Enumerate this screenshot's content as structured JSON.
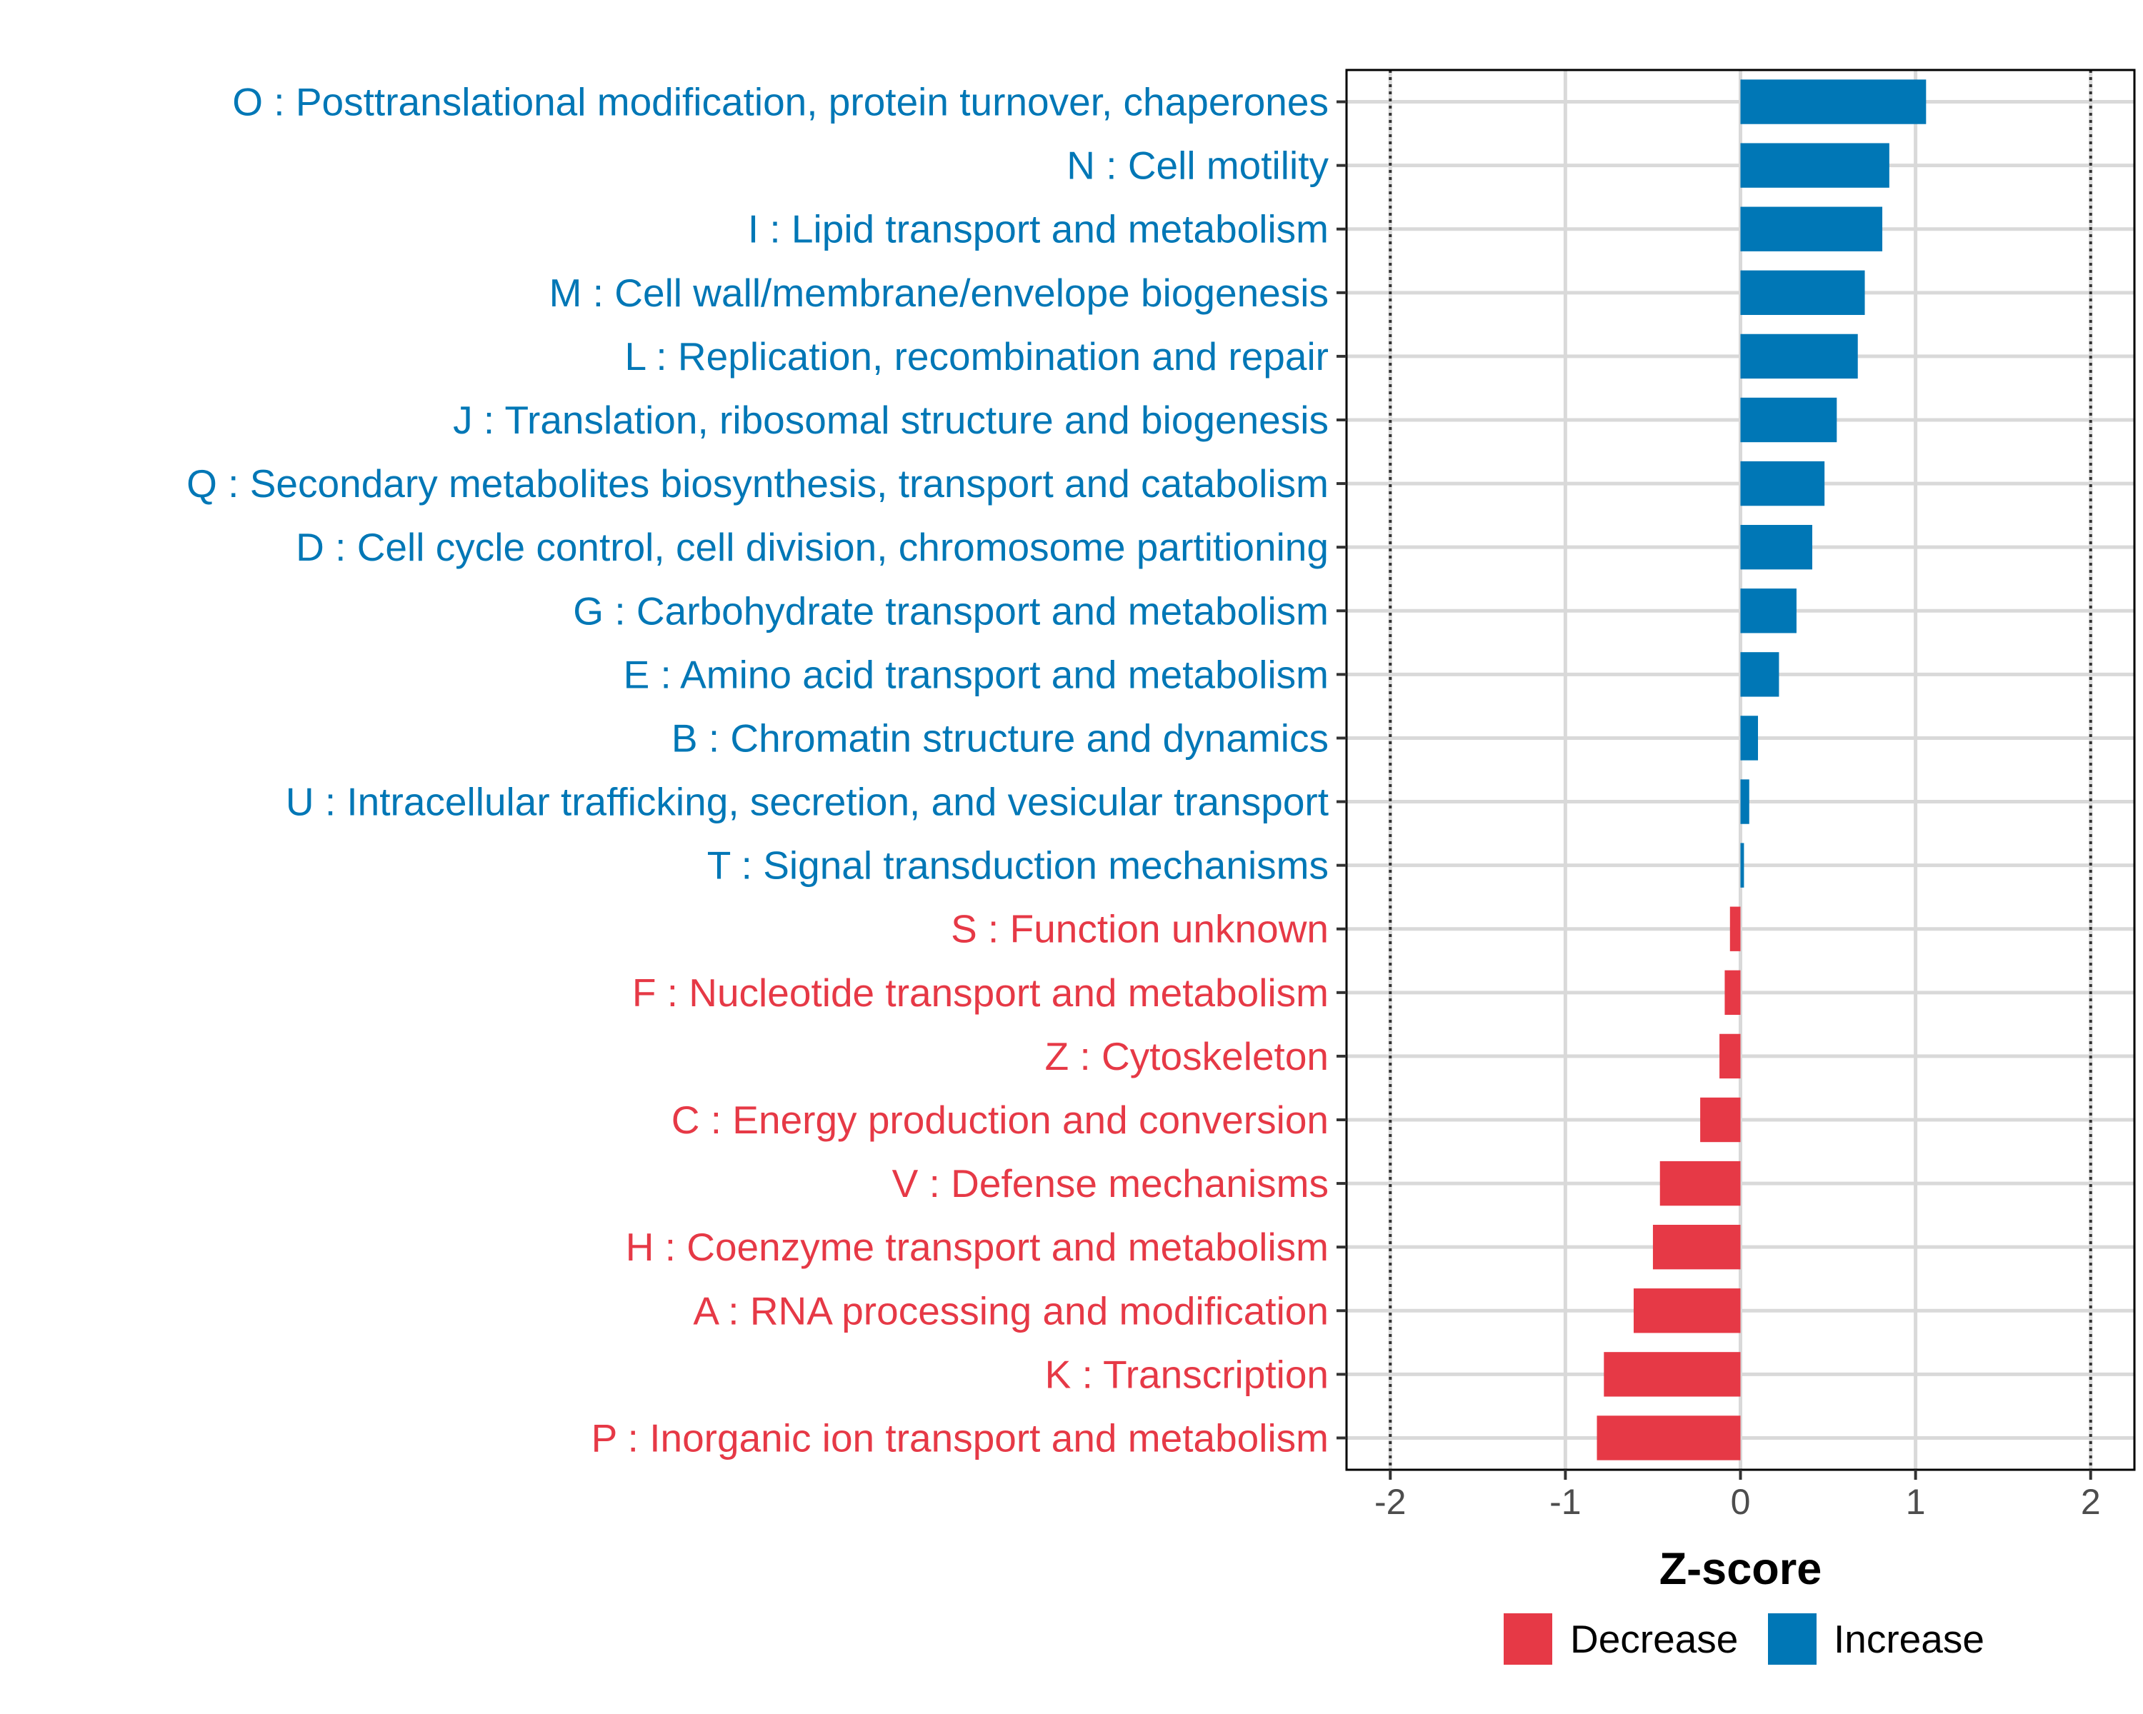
{
  "chart_data": {
    "type": "bar",
    "orientation": "horizontal",
    "title": "",
    "xlabel": "Z-score",
    "ylabel": "",
    "xlim": [
      -2.25,
      2.25
    ],
    "xticks": [
      -2,
      -1,
      0,
      1,
      2
    ],
    "xtick_labels": [
      "-2",
      "-1",
      "0",
      "1",
      "2"
    ],
    "reference_lines": [
      -2,
      2
    ],
    "grid": true,
    "legend_position": "bottom",
    "legend": [
      {
        "label": "Decrease",
        "color": "#e63946"
      },
      {
        "label": "Increase",
        "color": "#0077b6"
      }
    ],
    "categories": [
      "O : Posttranslational modification, protein turnover, chaperones",
      "N : Cell motility",
      "I : Lipid transport and metabolism",
      "M : Cell wall/membrane/envelope biogenesis",
      "L : Replication, recombination and repair",
      "J : Translation, ribosomal structure and biogenesis",
      "Q : Secondary metabolites biosynthesis, transport and catabolism",
      "D : Cell cycle control, cell division, chromosome partitioning",
      "G : Carbohydrate transport and metabolism",
      "E : Amino acid transport and metabolism",
      "B : Chromatin structure and dynamics",
      "U : Intracellular trafficking, secretion, and vesicular transport",
      "T : Signal transduction mechanisms",
      "S : Function unknown",
      "F : Nucleotide transport and metabolism",
      "Z : Cytoskeleton",
      "C : Energy production and conversion",
      "V : Defense mechanisms",
      "H : Coenzyme transport and metabolism",
      "A : RNA processing and modification",
      "K : Transcription",
      "P : Inorganic ion transport and metabolism"
    ],
    "values": [
      1.06,
      0.85,
      0.81,
      0.71,
      0.67,
      0.55,
      0.48,
      0.41,
      0.32,
      0.22,
      0.1,
      0.05,
      0.02,
      -0.06,
      -0.09,
      -0.12,
      -0.23,
      -0.46,
      -0.5,
      -0.61,
      -0.78,
      -0.82
    ],
    "groups": [
      "Increase",
      "Increase",
      "Increase",
      "Increase",
      "Increase",
      "Increase",
      "Increase",
      "Increase",
      "Increase",
      "Increase",
      "Increase",
      "Increase",
      "Increase",
      "Decrease",
      "Decrease",
      "Decrease",
      "Decrease",
      "Decrease",
      "Decrease",
      "Decrease",
      "Decrease",
      "Decrease"
    ]
  }
}
